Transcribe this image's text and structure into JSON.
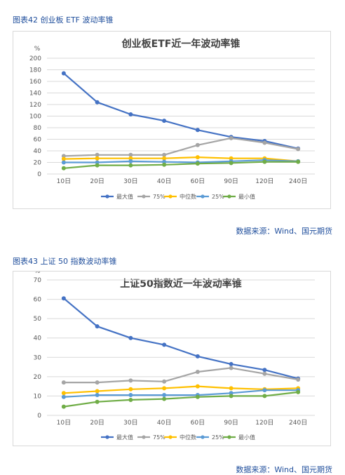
{
  "figures": [
    {
      "caption": "图表42 创业板 ETF 波动率锥",
      "source": "数据来源：Wind、国元期货"
    },
    {
      "caption": "图表43 上证 50 指数波动率锥",
      "source": "数据来源：Wind、国元期货"
    }
  ],
  "chart_data": [
    {
      "type": "line",
      "title": "创业板ETF近一年波动率锥",
      "ylabel": "%",
      "ylim": [
        0,
        200
      ],
      "yticks": [
        0,
        20,
        40,
        60,
        80,
        100,
        120,
        140,
        160,
        180,
        200
      ],
      "categories": [
        "10日",
        "20日",
        "30日",
        "40日",
        "60日",
        "90日",
        "120日",
        "240日"
      ],
      "grid": true,
      "legend": "bottom",
      "series": [
        {
          "name": "最大值",
          "color": "#4472c4",
          "values": [
            174,
            124,
            103,
            92,
            76,
            64,
            57,
            44
          ]
        },
        {
          "name": "75%",
          "color": "#a5a5a5",
          "values": [
            31,
            33,
            33,
            33,
            50,
            62,
            54,
            43
          ]
        },
        {
          "name": "中位数",
          "color": "#ffc000",
          "values": [
            26,
            27,
            27,
            27,
            29,
            27,
            27,
            22
          ]
        },
        {
          "name": "25%",
          "color": "#5b9bd5",
          "values": [
            20,
            20,
            22,
            21,
            20,
            22,
            24,
            22
          ]
        },
        {
          "name": "最小值",
          "color": "#70ad47",
          "values": [
            10,
            15,
            15,
            16,
            18,
            19,
            21,
            21
          ]
        }
      ]
    },
    {
      "type": "line",
      "title": "上证50指数近一年波动率锥",
      "ylabel": "%",
      "ylim": [
        0,
        70
      ],
      "yticks": [
        0,
        10,
        20,
        30,
        40,
        50,
        60,
        70
      ],
      "categories": [
        "10日",
        "20日",
        "30日",
        "40日",
        "60日",
        "90日",
        "120日",
        "240日"
      ],
      "grid": true,
      "legend": "bottom",
      "series": [
        {
          "name": "最大值",
          "color": "#4472c4",
          "values": [
            60.5,
            46,
            40,
            36.5,
            30.5,
            26.5,
            23.5,
            19
          ]
        },
        {
          "name": "75%",
          "color": "#a5a5a5",
          "values": [
            17,
            17,
            18,
            17.5,
            22.5,
            24.5,
            21.5,
            18.5
          ]
        },
        {
          "name": "中位数",
          "color": "#ffc000",
          "values": [
            11.5,
            12.5,
            13.5,
            14,
            15,
            14,
            13.5,
            14
          ]
        },
        {
          "name": "25%",
          "color": "#5b9bd5",
          "values": [
            9.5,
            10.5,
            10.5,
            10.5,
            10.5,
            11.5,
            13,
            13
          ]
        },
        {
          "name": "最小值",
          "color": "#70ad47",
          "values": [
            4.5,
            7,
            8,
            8.5,
            9.5,
            10,
            10,
            12
          ]
        }
      ]
    }
  ]
}
